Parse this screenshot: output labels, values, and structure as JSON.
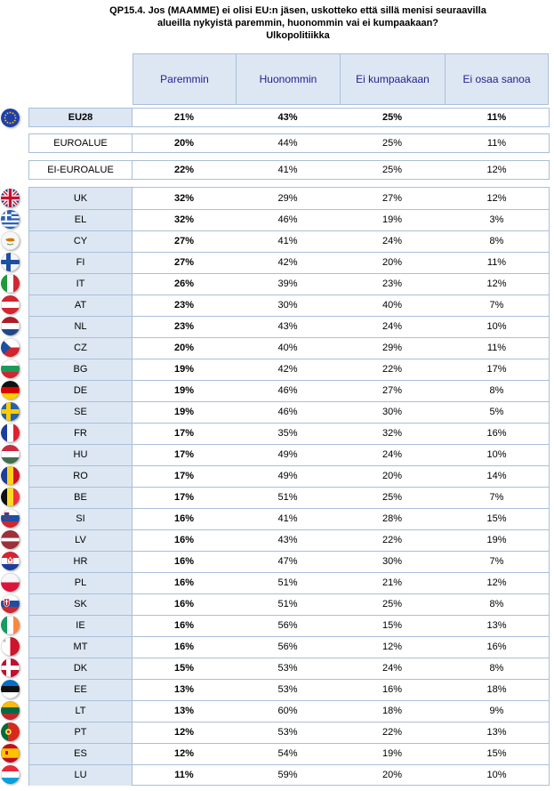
{
  "title": {
    "line1": "QP15.4. Jos (MAAMME) ei olisi EU:n jäsen, uskotteko että sillä menisi seuraavilla",
    "line2": "alueilla nykyistä paremmin, huonommin vai ei kumpaakaan?",
    "line3": "Ulkopolitiikka"
  },
  "columns": [
    "Paremmin",
    "Huonommin",
    "Ei kumpaakaan",
    "Ei osaa sanoa"
  ],
  "summary_rows": [
    {
      "label": "EU28",
      "values": [
        "21%",
        "43%",
        "25%",
        "11%"
      ]
    },
    {
      "label": "EUROALUE",
      "values": [
        "20%",
        "44%",
        "25%",
        "11%"
      ]
    },
    {
      "label": "EI-EUROALUE",
      "values": [
        "22%",
        "41%",
        "25%",
        "12%"
      ]
    }
  ],
  "country_rows": [
    {
      "label": "UK",
      "flag": "uk-flag-icon",
      "values": [
        "32%",
        "29%",
        "27%",
        "12%"
      ]
    },
    {
      "label": "EL",
      "flag": "greece-flag-icon",
      "values": [
        "32%",
        "46%",
        "19%",
        "3%"
      ]
    },
    {
      "label": "CY",
      "flag": "cyprus-flag-icon",
      "values": [
        "27%",
        "41%",
        "24%",
        "8%"
      ]
    },
    {
      "label": "FI",
      "flag": "finland-flag-icon",
      "values": [
        "27%",
        "42%",
        "20%",
        "11%"
      ]
    },
    {
      "label": "IT",
      "flag": "italy-flag-icon",
      "values": [
        "26%",
        "39%",
        "23%",
        "12%"
      ]
    },
    {
      "label": "AT",
      "flag": "austria-flag-icon",
      "values": [
        "23%",
        "30%",
        "40%",
        "7%"
      ]
    },
    {
      "label": "NL",
      "flag": "netherlands-flag-icon",
      "values": [
        "23%",
        "43%",
        "24%",
        "10%"
      ]
    },
    {
      "label": "CZ",
      "flag": "czech-flag-icon",
      "values": [
        "20%",
        "40%",
        "29%",
        "11%"
      ]
    },
    {
      "label": "BG",
      "flag": "bulgaria-flag-icon",
      "values": [
        "19%",
        "42%",
        "22%",
        "17%"
      ]
    },
    {
      "label": "DE",
      "flag": "germany-flag-icon",
      "values": [
        "19%",
        "46%",
        "27%",
        "8%"
      ]
    },
    {
      "label": "SE",
      "flag": "sweden-flag-icon",
      "values": [
        "19%",
        "46%",
        "30%",
        "5%"
      ]
    },
    {
      "label": "FR",
      "flag": "france-flag-icon",
      "values": [
        "17%",
        "35%",
        "32%",
        "16%"
      ]
    },
    {
      "label": "HU",
      "flag": "hungary-flag-icon",
      "values": [
        "17%",
        "49%",
        "24%",
        "10%"
      ]
    },
    {
      "label": "RO",
      "flag": "romania-flag-icon",
      "values": [
        "17%",
        "49%",
        "20%",
        "14%"
      ]
    },
    {
      "label": "BE",
      "flag": "belgium-flag-icon",
      "values": [
        "17%",
        "51%",
        "25%",
        "7%"
      ]
    },
    {
      "label": "SI",
      "flag": "slovenia-flag-icon",
      "values": [
        "16%",
        "41%",
        "28%",
        "15%"
      ]
    },
    {
      "label": "LV",
      "flag": "latvia-flag-icon",
      "values": [
        "16%",
        "43%",
        "22%",
        "19%"
      ]
    },
    {
      "label": "HR",
      "flag": "croatia-flag-icon",
      "values": [
        "16%",
        "47%",
        "30%",
        "7%"
      ]
    },
    {
      "label": "PL",
      "flag": "poland-flag-icon",
      "values": [
        "16%",
        "51%",
        "21%",
        "12%"
      ]
    },
    {
      "label": "SK",
      "flag": "slovakia-flag-icon",
      "values": [
        "16%",
        "51%",
        "25%",
        "8%"
      ]
    },
    {
      "label": "IE",
      "flag": "ireland-flag-icon",
      "values": [
        "16%",
        "56%",
        "15%",
        "13%"
      ]
    },
    {
      "label": "MT",
      "flag": "malta-flag-icon",
      "values": [
        "16%",
        "56%",
        "12%",
        "16%"
      ]
    },
    {
      "label": "DK",
      "flag": "denmark-flag-icon",
      "values": [
        "15%",
        "53%",
        "24%",
        "8%"
      ]
    },
    {
      "label": "EE",
      "flag": "estonia-flag-icon",
      "values": [
        "13%",
        "53%",
        "16%",
        "18%"
      ]
    },
    {
      "label": "LT",
      "flag": "lithuania-flag-icon",
      "values": [
        "13%",
        "60%",
        "18%",
        "9%"
      ]
    },
    {
      "label": "PT",
      "flag": "portugal-flag-icon",
      "values": [
        "12%",
        "53%",
        "22%",
        "13%"
      ]
    },
    {
      "label": "ES",
      "flag": "spain-flag-icon",
      "values": [
        "12%",
        "54%",
        "19%",
        "15%"
      ]
    },
    {
      "label": "LU",
      "flag": "luxembourg-flag-icon",
      "values": [
        "11%",
        "59%",
        "20%",
        "10%"
      ]
    }
  ],
  "colors": {
    "header_bg": "#dde7f3",
    "border": "#a9bfd9",
    "header_text": "#1f1f8f"
  }
}
